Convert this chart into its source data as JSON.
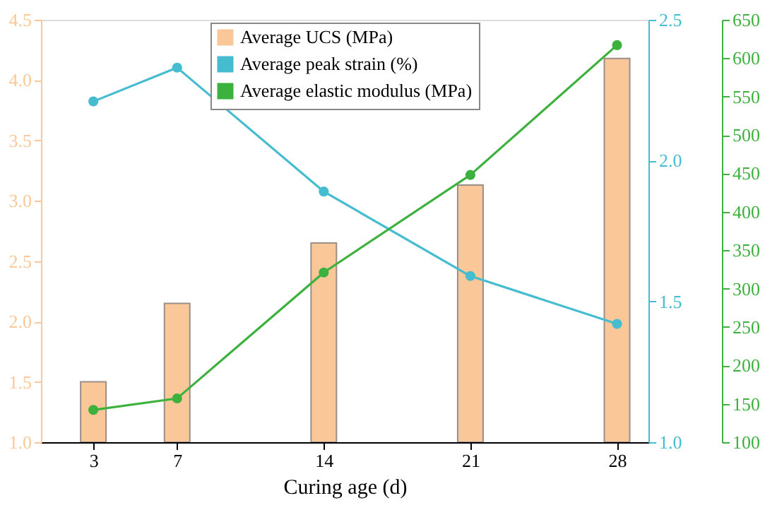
{
  "chart_data": {
    "type": "bar",
    "xlabel": "Curing age (d)",
    "x": [
      3,
      7,
      14,
      21,
      28
    ],
    "xlim": [
      0.5,
      29.5
    ],
    "xticks": [
      3,
      7,
      14,
      21,
      28
    ],
    "series": [
      {
        "name": "Average UCS (MPa)",
        "color": "#fac898",
        "axis": "y",
        "values": [
          1.5,
          2.15,
          2.65,
          3.13,
          4.18
        ]
      },
      {
        "name": "Average peak strain (%)",
        "type": "line",
        "color": "#45bcd0",
        "axis": "y2",
        "marker": "circle",
        "values": [
          2.21,
          2.33,
          1.89,
          1.59,
          1.42
        ]
      },
      {
        "name": "Average elastic modulus (MPa)",
        "type": "line",
        "color": "#3db13d",
        "axis": "y3",
        "marker": "circle",
        "values": [
          142,
          157,
          321,
          448,
          617
        ]
      }
    ],
    "ylim": [
      1.0,
      4.5
    ],
    "yticks": [
      {
        "value": 1.0,
        "label": "1.0"
      },
      1.5,
      {
        "value": 2.0,
        "label": "2.0"
      },
      2.5,
      {
        "value": 3.0,
        "label": "3.0"
      },
      3.5,
      {
        "value": 4.0,
        "label": "4.0"
      },
      4.5
    ],
    "y2lim": [
      1.0,
      2.5
    ],
    "y2ticks": [
      {
        "value": 1.0,
        "label": "1.0"
      },
      1.5,
      {
        "value": 2.0,
        "label": "2.0"
      },
      2.5
    ],
    "y3lim": [
      100,
      650
    ],
    "y3ticks": [
      100,
      150,
      200,
      250,
      300,
      350,
      400,
      450,
      500,
      550,
      600,
      650
    ],
    "legend": "top",
    "grid": false
  }
}
